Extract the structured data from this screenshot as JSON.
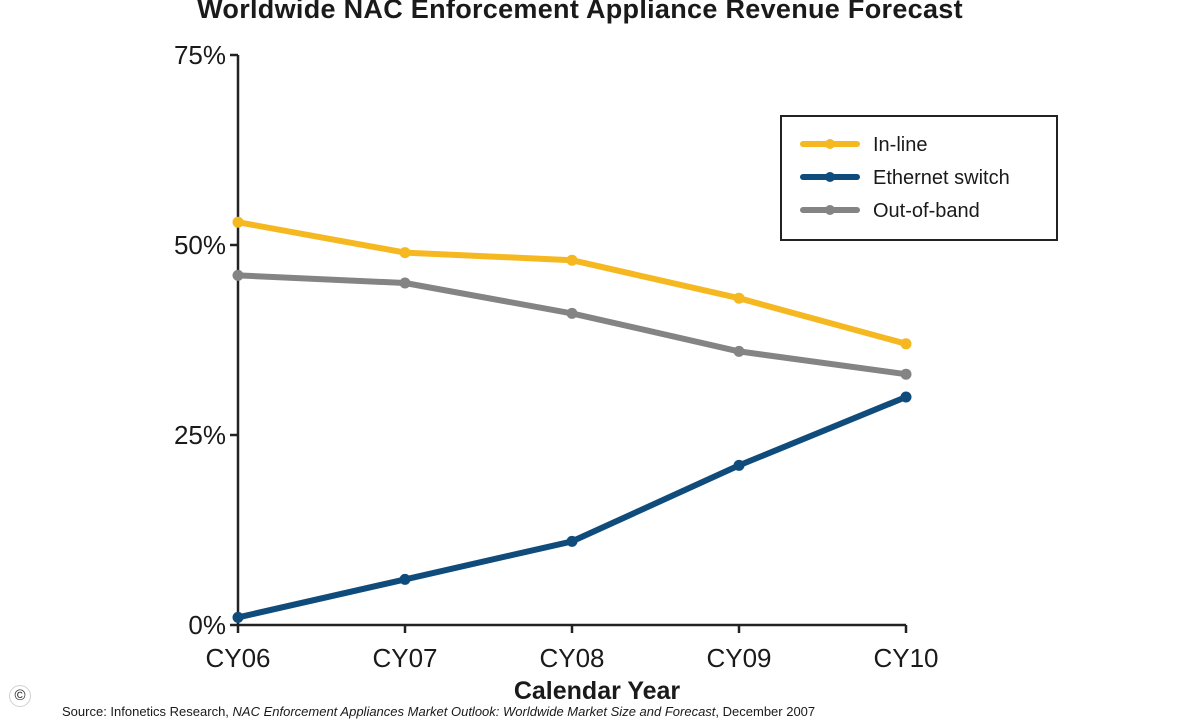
{
  "chart_data": {
    "type": "line",
    "title": "Worldwide NAC Enforcement Appliance Revenue Forecast",
    "xlabel": "Calendar Year",
    "ylabel": "",
    "categories": [
      "CY06",
      "CY07",
      "CY08",
      "CY09",
      "CY10"
    ],
    "ylim": [
      0,
      75
    ],
    "yticks": [
      0,
      25,
      50,
      75
    ],
    "ytick_labels": [
      "0%",
      "25%",
      "50%",
      "75%"
    ],
    "grid": false,
    "legend_position": "top-right",
    "series": [
      {
        "name": "In-line",
        "color": "#f5b820",
        "values": [
          53,
          49,
          48,
          43,
          37
        ]
      },
      {
        "name": "Ethernet switch",
        "color": "#0f4c7c",
        "values": [
          1,
          6,
          11,
          21,
          30
        ]
      },
      {
        "name": "Out-of-band",
        "color": "#848484",
        "values": [
          46,
          45,
          41,
          36,
          33
        ]
      }
    ]
  },
  "source": {
    "prefix": "Source: Infonetics Research, ",
    "publication": "NAC Enforcement Appliances Market Outlook: Worldwide Market Size and Forecast",
    "suffix": ", December 2007"
  },
  "copyright_symbol": "©"
}
